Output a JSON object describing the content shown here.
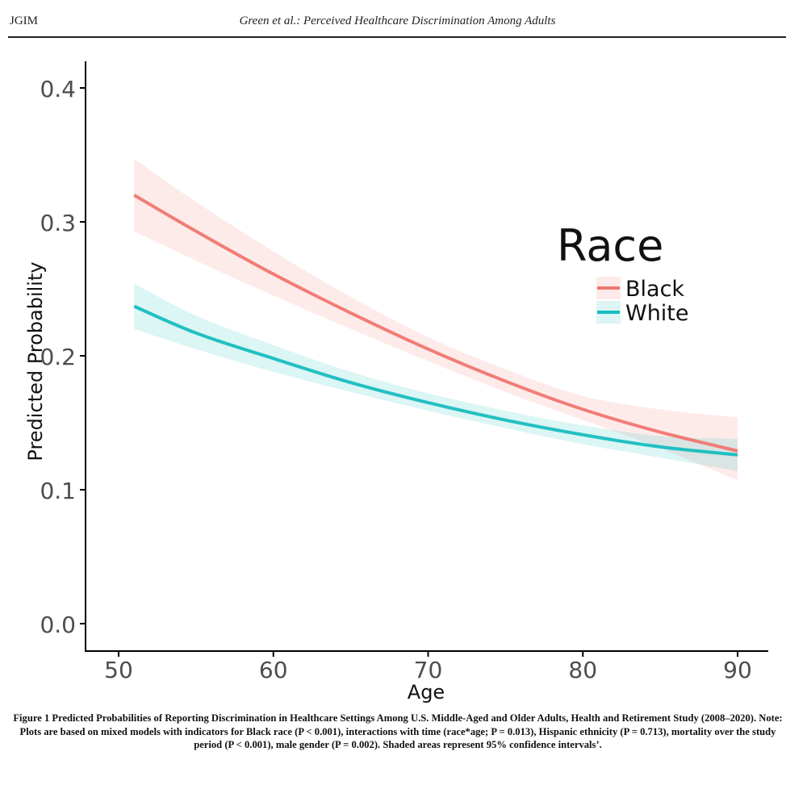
{
  "header": {
    "journal": "JGIM",
    "running_title": "Green et al.: Perceived Healthcare Discrimination Among Adults"
  },
  "caption": "Figure 1  Predicted Probabilities of Reporting Discrimination in Healthcare Settings Among U.S. Middle-Aged and Older Adults, Health and Retirement Study (2008–2020). Note: Plots are based on mixed models with indicators for Black race (P < 0.001), interactions with time (race*age; P = 0.013), Hispanic ethnicity (P = 0.713), mortality over the study period (P < 0.001), male gender (P = 0.002). Shaded areas represent 95% confidence intervals’.",
  "chart_data": {
    "type": "line",
    "xlabel": "Age",
    "ylabel": "Predicted Probability",
    "xlim": [
      48,
      92
    ],
    "ylim": [
      -0.02,
      0.42
    ],
    "xticks": [
      50,
      60,
      70,
      80,
      90
    ],
    "yticks": [
      0.0,
      0.1,
      0.2,
      0.3,
      0.4
    ],
    "xtick_labels": [
      "50",
      "60",
      "70",
      "80",
      "90"
    ],
    "ytick_labels": [
      "0.0",
      "0.1",
      "0.2",
      "0.3",
      "0.4"
    ],
    "grid": false,
    "legend": {
      "title": "Race",
      "placement": "right"
    },
    "x": [
      51,
      55,
      60,
      65,
      70,
      75,
      80,
      85,
      90
    ],
    "series": [
      {
        "name": "Black",
        "color": "#F07770",
        "values": [
          0.32,
          0.293,
          0.261,
          0.232,
          0.205,
          0.181,
          0.16,
          0.143,
          0.129
        ],
        "lower": [
          0.293,
          0.271,
          0.245,
          0.22,
          0.196,
          0.173,
          0.152,
          0.131,
          0.107
        ],
        "upper": [
          0.347,
          0.315,
          0.278,
          0.244,
          0.214,
          0.19,
          0.17,
          0.16,
          0.154
        ]
      },
      {
        "name": "White",
        "color": "#17BDBF",
        "values": [
          0.237,
          0.217,
          0.198,
          0.18,
          0.165,
          0.152,
          0.141,
          0.132,
          0.126
        ],
        "lower": [
          0.22,
          0.205,
          0.188,
          0.173,
          0.159,
          0.146,
          0.134,
          0.124,
          0.114
        ],
        "upper": [
          0.254,
          0.23,
          0.208,
          0.188,
          0.172,
          0.159,
          0.148,
          0.14,
          0.138
        ]
      }
    ]
  }
}
